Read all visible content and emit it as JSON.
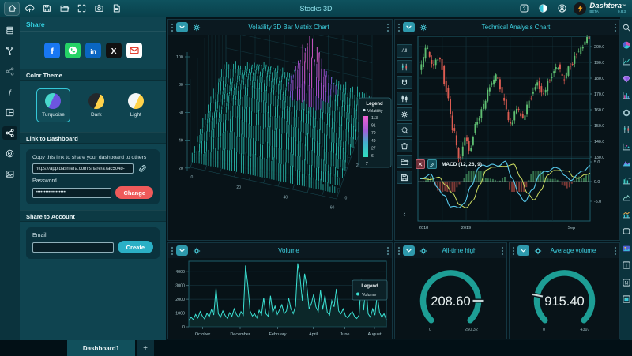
{
  "app": {
    "title": "Stocks 3D",
    "brand": "Dashtera",
    "brand_tm": "™",
    "brand_sub": "BETA",
    "brand_version": "0.8.3"
  },
  "topbar": {
    "left": [
      {
        "name": "home",
        "active": true
      },
      {
        "name": "cloud-upload"
      },
      {
        "name": "save"
      },
      {
        "name": "folder-open"
      },
      {
        "name": "fullscreen"
      },
      {
        "name": "screenshot"
      },
      {
        "name": "export-file"
      }
    ],
    "right": [
      {
        "name": "help"
      },
      {
        "name": "theme-toggle"
      },
      {
        "name": "account"
      }
    ]
  },
  "left_rail": [
    {
      "name": "data-table"
    },
    {
      "name": "connections"
    },
    {
      "name": "share-alt",
      "dim": true
    },
    {
      "name": "functions"
    },
    {
      "name": "layout"
    },
    {
      "name": "share",
      "active": true
    },
    {
      "name": "target"
    },
    {
      "name": "image"
    }
  ],
  "right_rail": [
    {
      "name": "search"
    },
    {
      "name": "pie-chart"
    },
    {
      "name": "line-chart"
    },
    {
      "name": "gem-chart"
    },
    {
      "name": "bar-chart"
    },
    {
      "name": "donut-chart"
    },
    {
      "name": "candle-chart"
    },
    {
      "name": "scatter-chart"
    },
    {
      "name": "surface-chart"
    },
    {
      "name": "ms-bar-chart"
    },
    {
      "name": "sketch-chart"
    },
    {
      "name": "combo-chart"
    },
    {
      "name": "shape-widget"
    },
    {
      "name": "image-widget"
    },
    {
      "name": "text-widget"
    },
    {
      "name": "note-widget"
    },
    {
      "name": "frame-widget"
    }
  ],
  "share_panel": {
    "title": "Share",
    "social": [
      {
        "name": "facebook"
      },
      {
        "name": "whatsapp"
      },
      {
        "name": "linkedin"
      },
      {
        "name": "x"
      },
      {
        "name": "email"
      }
    ],
    "color_theme": {
      "title": "Color Theme",
      "options": [
        {
          "label": "Turquoise",
          "selected": true
        },
        {
          "label": "Dark",
          "selected": false
        },
        {
          "label": "Light",
          "selected": false
        }
      ]
    },
    "link_section": {
      "title": "Link to Dashboard",
      "hint": "Copy this link to share your dashboard to others",
      "url": "https://app.dashtera.com/share/a7ac504b-",
      "password_label": "Password",
      "password_value": "••••••••••••••••••",
      "change_label": "Change"
    },
    "account_section": {
      "title": "Share to Account",
      "email_label": "Email",
      "email_value": "",
      "create_label": "Create"
    }
  },
  "tech_toolbar": {
    "items": [
      {
        "name": "range-all",
        "label": "All"
      },
      {
        "name": "candle-style",
        "icon": "candle-chart"
      },
      {
        "name": "magnet-mode",
        "icon": "magnet"
      },
      {
        "name": "hollow-candles",
        "icon": "candle-hollow"
      },
      {
        "name": "indicator-settings",
        "icon": "gear"
      },
      {
        "name": "brush-tool",
        "icon": "brush"
      },
      {
        "name": "delete-tool",
        "icon": "trash"
      },
      {
        "name": "load-layout",
        "icon": "folder-open"
      },
      {
        "name": "save-layout",
        "icon": "save"
      }
    ],
    "collapse_label": "‹"
  },
  "tabs": {
    "active": "Dashboard1",
    "add": "+"
  },
  "chart_data": [
    {
      "id": "volatility3d",
      "type": "3d-bar-matrix",
      "title": "Volatility 3D Bar Matrix Chart",
      "z_ticks": [
        100,
        80,
        60,
        40,
        20
      ],
      "x_ticks": [
        0,
        20,
        40,
        60
      ],
      "y_ticks": [
        0,
        20,
        40,
        60
      ],
      "legend": {
        "title": "Legend",
        "series": "Volatility",
        "scale": [
          113,
          91,
          70,
          49,
          27,
          6
        ],
        "axis_label": "y"
      },
      "colors": {
        "low": "#2fe0bf",
        "mid": "#44b0cc",
        "high": "#a45bd8",
        "peak": "#ee5fd2"
      }
    },
    {
      "id": "technical",
      "type": "candlestick",
      "title": "Technical Analysis Chart",
      "price_ticks": [
        200.0,
        190.0,
        180.0,
        170.0,
        160.0,
        150.0,
        140.0,
        130.0
      ],
      "x_labels": [
        {
          "label": "2018",
          "t": 0.0
        },
        {
          "label": "2019",
          "t": 0.27
        },
        {
          "label": "Sep",
          "t": 0.89
        }
      ],
      "price_anchors": [
        [
          0,
          184
        ],
        [
          0.04,
          199
        ],
        [
          0.08,
          188
        ],
        [
          0.12,
          194
        ],
        [
          0.16,
          172
        ],
        [
          0.2,
          148
        ],
        [
          0.24,
          128
        ],
        [
          0.27,
          142
        ],
        [
          0.3,
          135
        ],
        [
          0.34,
          152
        ],
        [
          0.38,
          162
        ],
        [
          0.42,
          174
        ],
        [
          0.46,
          181
        ],
        [
          0.5,
          168
        ],
        [
          0.54,
          150
        ],
        [
          0.58,
          160
        ],
        [
          0.62,
          155
        ],
        [
          0.66,
          168
        ],
        [
          0.7,
          177
        ],
        [
          0.74,
          170
        ],
        [
          0.78,
          180
        ],
        [
          0.82,
          188
        ],
        [
          0.86,
          180
        ],
        [
          0.9,
          188
        ],
        [
          0.94,
          196
        ],
        [
          0.97,
          200
        ],
        [
          1,
          205
        ]
      ],
      "indicator": {
        "name": "MACD (12, 26, 9)",
        "ticks": [
          5.0,
          0.0,
          -5.0
        ],
        "anchors": [
          [
            0,
            0.5
          ],
          [
            0.06,
            1.5
          ],
          [
            0.1,
            -1
          ],
          [
            0.14,
            -3.5
          ],
          [
            0.18,
            -6.5
          ],
          [
            0.22,
            -7
          ],
          [
            0.26,
            -5
          ],
          [
            0.3,
            -1
          ],
          [
            0.34,
            3
          ],
          [
            0.38,
            4
          ],
          [
            0.42,
            4.5
          ],
          [
            0.46,
            4.3
          ],
          [
            0.5,
            4.6
          ],
          [
            0.54,
            1
          ],
          [
            0.58,
            -3
          ],
          [
            0.62,
            -4.8
          ],
          [
            0.66,
            -2.5
          ],
          [
            0.7,
            1.5
          ],
          [
            0.74,
            3
          ],
          [
            0.78,
            3.3
          ],
          [
            0.82,
            3.1
          ],
          [
            0.85,
            1.2
          ],
          [
            0.88,
            0.6
          ],
          [
            0.92,
            1.8
          ],
          [
            0.96,
            2.6
          ],
          [
            1,
            3.6
          ]
        ]
      },
      "up_color": "#5fbf72",
      "down_color": "#dd5c52"
    },
    {
      "id": "volume",
      "type": "area",
      "title": "Volume",
      "y_ticks": [
        0,
        1000,
        2000,
        3000,
        4000
      ],
      "y_max": 4700,
      "x_labels": [
        {
          "label": "October",
          "t": 0.07
        },
        {
          "label": "December",
          "t": 0.26
        },
        {
          "label": "February",
          "t": 0.45
        },
        {
          "label": "April",
          "t": 0.63
        },
        {
          "label": "June",
          "t": 0.79
        },
        {
          "label": "August",
          "t": 0.94
        }
      ],
      "legend": {
        "title": "Legend",
        "series": "Volume"
      },
      "line_color": "#3be0d2",
      "values": [
        450,
        700,
        520,
        900,
        640,
        1100,
        780,
        560,
        980,
        720,
        1250,
        860,
        2800,
        950,
        700,
        1150,
        830,
        620,
        1020,
        760,
        1300,
        900,
        680,
        1100,
        850,
        4450,
        3050,
        1150,
        780,
        950,
        650,
        1200,
        880,
        2100,
        950,
        760,
        2250,
        1050,
        1500,
        900,
        1250,
        1600,
        950,
        1150,
        2100,
        1300,
        950,
        1500,
        4600,
        3600,
        1900,
        3850,
        2950,
        1300,
        1700,
        2350,
        1450,
        1100,
        2650,
        1250,
        2300,
        1050,
        850,
        1900,
        1450,
        2750,
        1150,
        950,
        1300,
        800,
        650,
        900,
        1100,
        750,
        600,
        850,
        3400,
        1200,
        3100,
        950,
        700,
        1300,
        850,
        2350,
        1050,
        700,
        950,
        520
      ]
    },
    {
      "id": "ath",
      "type": "gauge",
      "title": "All-time high",
      "value": 208.6,
      "display": "208.60",
      "min": 0,
      "max": 250.32,
      "min_label": "0",
      "max_label": "250.32",
      "arc_color": "#1d9e95"
    },
    {
      "id": "avg_volume",
      "type": "gauge",
      "title": "Average volume",
      "value": 915.4,
      "display": "915.40",
      "min": 0,
      "max": 4397,
      "min_label": "0",
      "max_label": "4397",
      "arc_color": "#1d9e95"
    }
  ]
}
